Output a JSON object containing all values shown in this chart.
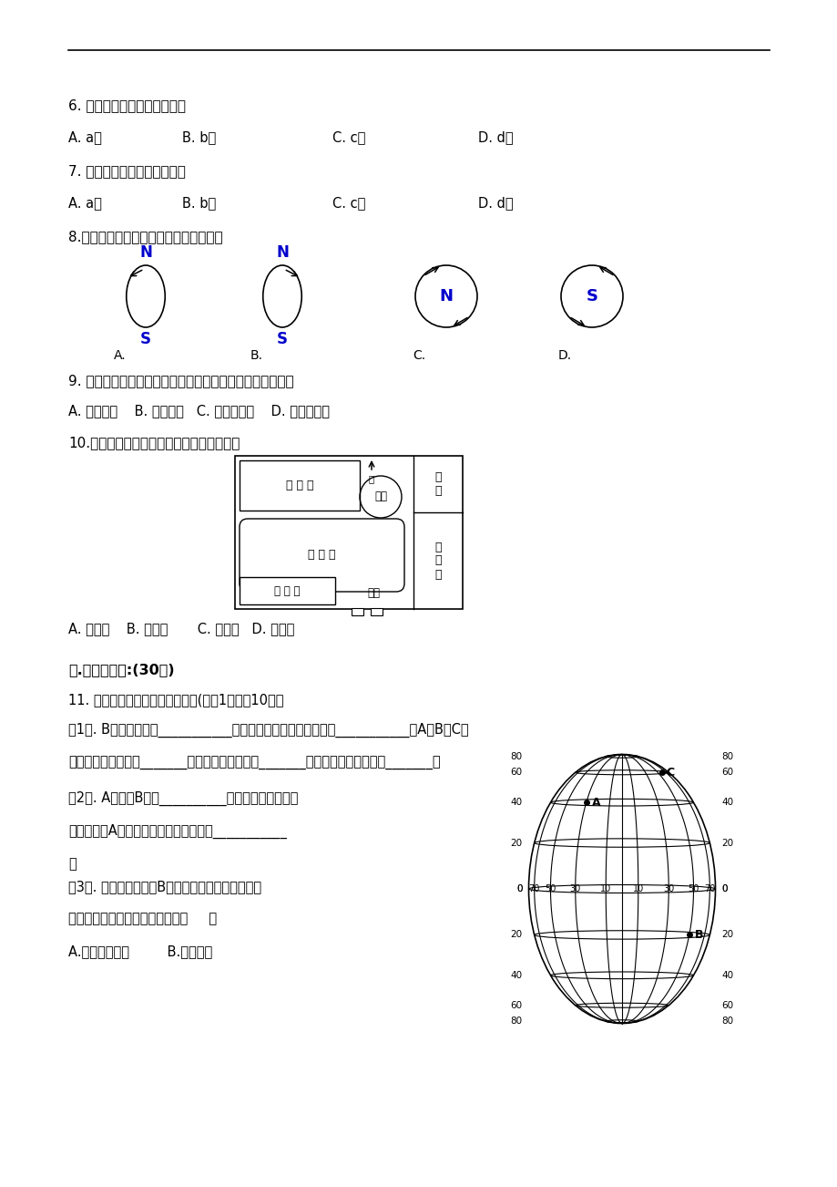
{
  "bg_color": "#ffffff",
  "blue_color": "#0000cc",
  "text_color": "#000000",
  "q6_text": "6. 位于北半球中纬度的地点是",
  "q6_options": [
    "A. a点",
    "B. b点",
    "C. c点",
    "D. d点"
  ],
  "q7_text": "7. 位于南半球低纬度的地点是",
  "q7_options": [
    "A. a点",
    "B. b点",
    "C. c点",
    "D. d点"
  ],
  "q8_text": "8.下面四幅图中，地球自转方向正确的是",
  "q9_text": "9. 下列地图的图幅大小相同，图中表示的内容最详细的是：",
  "q9_options": "A. 世界地图    B. 中国地图   C. 湖北省地图    D. 利川市地图",
  "q10_text": "10.如图，某中学校园平面图，校门朝向是：",
  "q10_options": "A. 正南方    B. 正北方       C. 正西方   D. 正东方",
  "section2_title": "二.综合分析题:(30分)",
  "q11_text": "11. 读经纬网图，完成下列各题。(每空1分，全10分）",
  "q11_1": "（1）. B点的经纬度是___________，从东、西半球来看，它位于___________，A、B、C三",
  "q11_1b": "地中位于低纬度的是_______、四季变化明显的是_______、有极昼极夜现象的是_______。",
  "q11_2": "（2）. A点位于B点的__________方向，在地球表面，",
  "q11_2b": "通过地心与A地对称的另一地的经纬度是___________",
  "q11_2c": "。",
  "q11_3": "（3）. 某环球旅行家介B地出发，径直往南走（不考",
  "q11_3b": "虑任何环境影响因素），他最终（     ）",
  "q11_3c": "A.回到原出发点         B.到达赤道"
}
